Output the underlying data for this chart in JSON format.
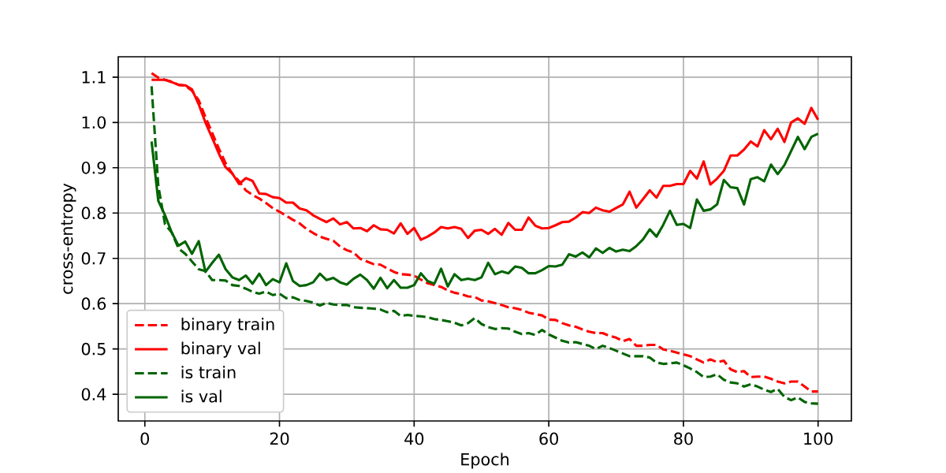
{
  "chart_data": {
    "type": "line",
    "xlabel": "Epoch",
    "ylabel": "cross-entropy",
    "x": [
      1,
      2,
      3,
      4,
      5,
      6,
      7,
      8,
      9,
      10,
      11,
      12,
      13,
      14,
      15,
      16,
      17,
      18,
      19,
      20,
      21,
      22,
      23,
      24,
      25,
      26,
      27,
      28,
      29,
      30,
      31,
      32,
      33,
      34,
      35,
      36,
      37,
      38,
      39,
      40,
      41,
      42,
      43,
      44,
      45,
      46,
      47,
      48,
      49,
      50,
      51,
      52,
      53,
      54,
      55,
      56,
      57,
      58,
      59,
      60,
      61,
      62,
      63,
      64,
      65,
      66,
      67,
      68,
      69,
      70,
      71,
      72,
      73,
      74,
      75,
      76,
      77,
      78,
      79,
      80,
      81,
      82,
      83,
      84,
      85,
      86,
      87,
      88,
      89,
      90,
      91,
      92,
      93,
      94,
      95,
      96,
      97,
      98,
      99,
      100
    ],
    "xlim": [
      -3.95,
      104.95
    ],
    "ylim": [
      0.341,
      1.145
    ],
    "xticks": [
      0,
      20,
      40,
      60,
      80,
      100
    ],
    "yticks": [
      0.4,
      0.5,
      0.6,
      0.7,
      0.8,
      0.9,
      {
        "value": 1,
        "label": "1.0"
      },
      1.1
    ],
    "grid": true,
    "legend": "bottom left",
    "series": [
      {
        "name": "binary train",
        "color": "#ff0000",
        "line_style": "dashed",
        "values": [
          1.109,
          1.099,
          1.094,
          1.09,
          1.083,
          1.081,
          1.07,
          1.049,
          1.012,
          0.977,
          0.942,
          0.91,
          0.887,
          0.87,
          0.85,
          0.84,
          0.832,
          0.822,
          0.811,
          0.803,
          0.794,
          0.785,
          0.777,
          0.765,
          0.756,
          0.748,
          0.743,
          0.739,
          0.726,
          0.718,
          0.713,
          0.699,
          0.693,
          0.687,
          0.686,
          0.678,
          0.67,
          0.665,
          0.664,
          0.662,
          0.653,
          0.645,
          0.641,
          0.637,
          0.629,
          0.624,
          0.621,
          0.616,
          0.615,
          0.607,
          0.605,
          0.601,
          0.597,
          0.592,
          0.59,
          0.586,
          0.58,
          0.577,
          0.574,
          0.565,
          0.564,
          0.557,
          0.552,
          0.549,
          0.543,
          0.538,
          0.535,
          0.535,
          0.529,
          0.525,
          0.517,
          0.522,
          0.507,
          0.507,
          0.509,
          0.509,
          0.499,
          0.496,
          0.492,
          0.488,
          0.484,
          0.477,
          0.47,
          0.477,
          0.471,
          0.474,
          0.455,
          0.449,
          0.451,
          0.438,
          0.439,
          0.439,
          0.434,
          0.428,
          0.424,
          0.428,
          0.428,
          0.417,
          0.406,
          0.406
        ]
      },
      {
        "name": "binary val",
        "color": "#ff0000",
        "line_style": "solid",
        "values": [
          1.094,
          1.094,
          1.094,
          1.089,
          1.083,
          1.082,
          1.073,
          1.04,
          1.0,
          0.966,
          0.931,
          0.901,
          0.887,
          0.864,
          0.877,
          0.871,
          0.843,
          0.842,
          0.835,
          0.833,
          0.823,
          0.823,
          0.81,
          0.806,
          0.795,
          0.787,
          0.78,
          0.788,
          0.775,
          0.78,
          0.766,
          0.767,
          0.76,
          0.773,
          0.764,
          0.763,
          0.755,
          0.777,
          0.754,
          0.767,
          0.741,
          0.748,
          0.757,
          0.769,
          0.766,
          0.769,
          0.765,
          0.745,
          0.761,
          0.763,
          0.754,
          0.765,
          0.752,
          0.778,
          0.763,
          0.763,
          0.79,
          0.772,
          0.766,
          0.767,
          0.773,
          0.78,
          0.781,
          0.79,
          0.802,
          0.8,
          0.812,
          0.806,
          0.803,
          0.811,
          0.819,
          0.847,
          0.812,
          0.831,
          0.85,
          0.834,
          0.86,
          0.86,
          0.864,
          0.864,
          0.893,
          0.876,
          0.914,
          0.863,
          0.876,
          0.893,
          0.927,
          0.927,
          0.94,
          0.958,
          0.947,
          0.983,
          0.963,
          0.986,
          0.957,
          1.0,
          1.009,
          0.997,
          1.032,
          1.006
        ]
      },
      {
        "name": "is train",
        "color": "#006400",
        "line_style": "dashed",
        "values": [
          1.08,
          0.86,
          0.775,
          0.757,
          0.722,
          0.71,
          0.693,
          0.676,
          0.672,
          0.652,
          0.652,
          0.651,
          0.641,
          0.639,
          0.633,
          0.626,
          0.622,
          0.627,
          0.619,
          0.622,
          0.612,
          0.614,
          0.608,
          0.606,
          0.602,
          0.596,
          0.602,
          0.598,
          0.597,
          0.597,
          0.592,
          0.591,
          0.59,
          0.589,
          0.587,
          0.581,
          0.584,
          0.573,
          0.575,
          0.573,
          0.572,
          0.57,
          0.566,
          0.564,
          0.561,
          0.558,
          0.552,
          0.557,
          0.568,
          0.555,
          0.548,
          0.544,
          0.546,
          0.545,
          0.538,
          0.533,
          0.535,
          0.531,
          0.542,
          0.532,
          0.525,
          0.518,
          0.514,
          0.515,
          0.511,
          0.507,
          0.5,
          0.507,
          0.502,
          0.496,
          0.49,
          0.484,
          0.484,
          0.484,
          0.481,
          0.47,
          0.467,
          0.468,
          0.47,
          0.464,
          0.457,
          0.449,
          0.438,
          0.439,
          0.444,
          0.432,
          0.426,
          0.424,
          0.417,
          0.422,
          0.417,
          0.41,
          0.405,
          0.412,
          0.394,
          0.387,
          0.393,
          0.383,
          0.38,
          0.379
        ]
      },
      {
        "name": "is val",
        "color": "#006400",
        "line_style": "solid",
        "values": [
          0.958,
          0.827,
          0.795,
          0.757,
          0.728,
          0.737,
          0.71,
          0.738,
          0.67,
          0.69,
          0.708,
          0.676,
          0.658,
          0.652,
          0.662,
          0.644,
          0.666,
          0.641,
          0.654,
          0.647,
          0.689,
          0.65,
          0.639,
          0.641,
          0.647,
          0.666,
          0.652,
          0.657,
          0.647,
          0.642,
          0.655,
          0.664,
          0.652,
          0.633,
          0.657,
          0.634,
          0.652,
          0.635,
          0.635,
          0.641,
          0.667,
          0.65,
          0.644,
          0.677,
          0.638,
          0.665,
          0.652,
          0.655,
          0.652,
          0.658,
          0.69,
          0.665,
          0.671,
          0.667,
          0.682,
          0.679,
          0.667,
          0.667,
          0.674,
          0.683,
          0.682,
          0.686,
          0.709,
          0.704,
          0.713,
          0.702,
          0.722,
          0.712,
          0.723,
          0.715,
          0.719,
          0.716,
          0.727,
          0.742,
          0.764,
          0.748,
          0.774,
          0.805,
          0.774,
          0.776,
          0.767,
          0.83,
          0.805,
          0.808,
          0.819,
          0.873,
          0.857,
          0.855,
          0.819,
          0.875,
          0.879,
          0.87,
          0.907,
          0.886,
          0.906,
          0.937,
          0.968,
          0.941,
          0.968,
          0.975
        ]
      }
    ]
  }
}
